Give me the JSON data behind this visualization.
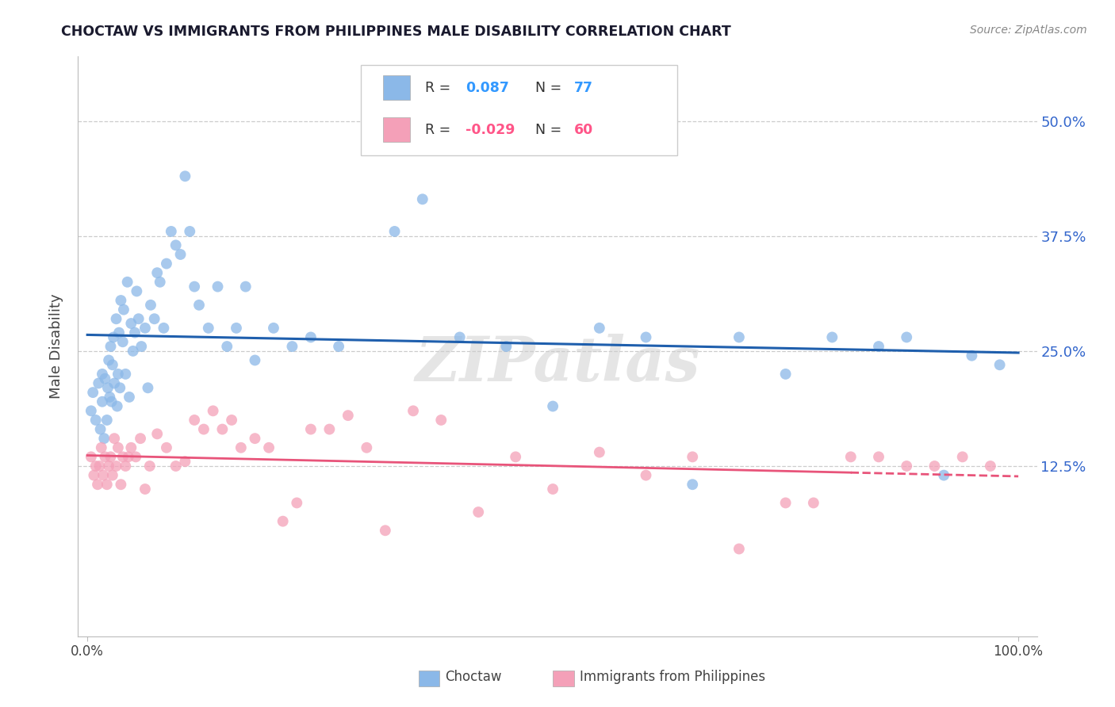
{
  "title": "CHOCTAW VS IMMIGRANTS FROM PHILIPPINES MALE DISABILITY CORRELATION CHART",
  "source": "Source: ZipAtlas.com",
  "ylabel": "Male Disability",
  "y_tick_labels": [
    "12.5%",
    "25.0%",
    "37.5%",
    "50.0%"
  ],
  "y_ticks": [
    0.125,
    0.25,
    0.375,
    0.5
  ],
  "xlim": [
    -0.01,
    1.02
  ],
  "ylim": [
    -0.06,
    0.57
  ],
  "choctaw_color": "#8BB8E8",
  "philippines_color": "#F4A0B8",
  "trend_choctaw_color": "#1F5FAD",
  "trend_philippines_color": "#E8547A",
  "background_color": "#FFFFFF",
  "grid_color": "#CCCCCC",
  "watermark_text": "ZIPatlas",
  "choctaw_R": "0.087",
  "choctaw_N": "77",
  "philippines_R": "-0.029",
  "philippines_N": "60",
  "choctaw_x": [
    0.004,
    0.006,
    0.009,
    0.012,
    0.014,
    0.016,
    0.016,
    0.018,
    0.019,
    0.021,
    0.022,
    0.023,
    0.024,
    0.025,
    0.026,
    0.027,
    0.028,
    0.029,
    0.031,
    0.032,
    0.033,
    0.034,
    0.035,
    0.036,
    0.038,
    0.039,
    0.041,
    0.043,
    0.045,
    0.047,
    0.049,
    0.051,
    0.053,
    0.055,
    0.058,
    0.062,
    0.065,
    0.068,
    0.072,
    0.075,
    0.078,
    0.082,
    0.085,
    0.09,
    0.095,
    0.1,
    0.105,
    0.11,
    0.115,
    0.12,
    0.13,
    0.14,
    0.15,
    0.16,
    0.17,
    0.18,
    0.2,
    0.22,
    0.24,
    0.27,
    0.3,
    0.33,
    0.36,
    0.4,
    0.45,
    0.5,
    0.55,
    0.6,
    0.65,
    0.7,
    0.75,
    0.8,
    0.85,
    0.88,
    0.92,
    0.95,
    0.98
  ],
  "choctaw_y": [
    0.185,
    0.205,
    0.175,
    0.215,
    0.165,
    0.195,
    0.225,
    0.155,
    0.22,
    0.175,
    0.21,
    0.24,
    0.2,
    0.255,
    0.195,
    0.235,
    0.265,
    0.215,
    0.285,
    0.19,
    0.225,
    0.27,
    0.21,
    0.305,
    0.26,
    0.295,
    0.225,
    0.325,
    0.2,
    0.28,
    0.25,
    0.27,
    0.315,
    0.285,
    0.255,
    0.275,
    0.21,
    0.3,
    0.285,
    0.335,
    0.325,
    0.275,
    0.345,
    0.38,
    0.365,
    0.355,
    0.44,
    0.38,
    0.32,
    0.3,
    0.275,
    0.32,
    0.255,
    0.275,
    0.32,
    0.24,
    0.275,
    0.255,
    0.265,
    0.255,
    0.49,
    0.38,
    0.415,
    0.265,
    0.255,
    0.19,
    0.275,
    0.265,
    0.105,
    0.265,
    0.225,
    0.265,
    0.255,
    0.265,
    0.115,
    0.245,
    0.235
  ],
  "philippines_x": [
    0.004,
    0.007,
    0.009,
    0.011,
    0.013,
    0.015,
    0.017,
    0.019,
    0.021,
    0.023,
    0.025,
    0.027,
    0.029,
    0.031,
    0.033,
    0.036,
    0.038,
    0.041,
    0.044,
    0.047,
    0.052,
    0.057,
    0.062,
    0.067,
    0.075,
    0.085,
    0.095,
    0.105,
    0.115,
    0.125,
    0.135,
    0.145,
    0.155,
    0.165,
    0.18,
    0.195,
    0.21,
    0.225,
    0.24,
    0.26,
    0.28,
    0.3,
    0.32,
    0.35,
    0.38,
    0.42,
    0.46,
    0.5,
    0.55,
    0.6,
    0.65,
    0.7,
    0.75,
    0.78,
    0.82,
    0.85,
    0.88,
    0.91,
    0.94,
    0.97
  ],
  "philippines_y": [
    0.135,
    0.115,
    0.125,
    0.105,
    0.125,
    0.145,
    0.115,
    0.135,
    0.105,
    0.125,
    0.135,
    0.115,
    0.155,
    0.125,
    0.145,
    0.105,
    0.135,
    0.125,
    0.135,
    0.145,
    0.135,
    0.155,
    0.1,
    0.125,
    0.16,
    0.145,
    0.125,
    0.13,
    0.175,
    0.165,
    0.185,
    0.165,
    0.175,
    0.145,
    0.155,
    0.145,
    0.065,
    0.085,
    0.165,
    0.165,
    0.18,
    0.145,
    0.055,
    0.185,
    0.175,
    0.075,
    0.135,
    0.1,
    0.14,
    0.115,
    0.135,
    0.035,
    0.085,
    0.085,
    0.135,
    0.135,
    0.125,
    0.125,
    0.135,
    0.125
  ]
}
